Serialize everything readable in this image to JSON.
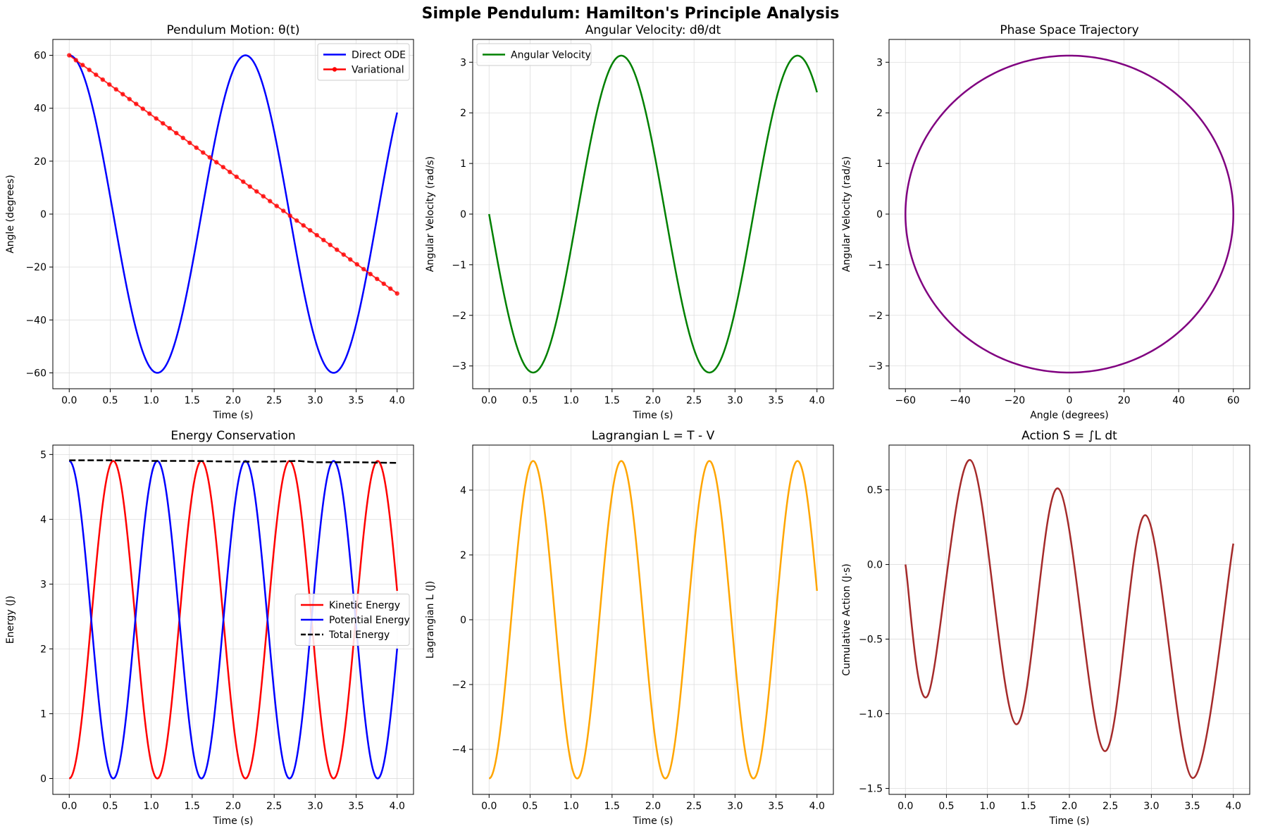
{
  "figure": {
    "title": "Simple Pendulum: Hamilton's Principle Analysis"
  },
  "chart_data": [
    {
      "type": "line",
      "title": "Pendulum Motion: θ(t)",
      "xlabel": "Time (s)",
      "ylabel": "Angle (degrees)",
      "xlim": [
        -0.2,
        4.2
      ],
      "ylim": [
        -66,
        66
      ],
      "xticks": [
        0.0,
        0.5,
        1.0,
        1.5,
        2.0,
        2.5,
        3.0,
        3.5,
        4.0
      ],
      "yticks": [
        -60,
        -40,
        -20,
        0,
        20,
        40,
        60
      ],
      "grid": true,
      "legend": "top-right",
      "series": [
        {
          "name": "Direct ODE",
          "color": "#0000ff",
          "func": "cos",
          "x_range": [
            0,
            4
          ],
          "amplitude": 60,
          "period": 2.15,
          "phase": 0,
          "offset": 0,
          "note_values": {
            "x": [
              0,
              1.07,
              2.15,
              3.22,
              4.0
            ],
            "y": [
              60,
              -60,
              60,
              -60,
              38.5
            ]
          }
        },
        {
          "name": "Variational",
          "color": "#ff0000",
          "marker": "dot",
          "x": [
            0,
            4
          ],
          "y": [
            60,
            -30
          ],
          "points": 50
        }
      ]
    },
    {
      "type": "line",
      "title": "Angular Velocity: dθ/dt",
      "xlabel": "Time (s)",
      "ylabel": "Angular Velocity (rad/s)",
      "xlim": [
        -0.2,
        4.2
      ],
      "ylim": [
        -3.45,
        3.45
      ],
      "xticks": [
        0.0,
        0.5,
        1.0,
        1.5,
        2.0,
        2.5,
        3.0,
        3.5,
        4.0
      ],
      "yticks": [
        -3,
        -2,
        -1,
        0,
        1,
        2,
        3
      ],
      "grid": true,
      "legend": "top-left",
      "series": [
        {
          "name": "Angular Velocity",
          "color": "#008000",
          "func": "negsin",
          "x_range": [
            0,
            4
          ],
          "amplitude": 3.13,
          "period": 2.15,
          "phase": 0,
          "offset": 0
        }
      ]
    },
    {
      "type": "line",
      "title": "Phase Space Trajectory",
      "xlabel": "Angle (degrees)",
      "ylabel": "Angular Velocity (rad/s)",
      "xlim": [
        -66,
        66
      ],
      "ylim": [
        -3.45,
        3.45
      ],
      "xticks": [
        -60,
        -40,
        -20,
        0,
        20,
        40,
        60
      ],
      "yticks": [
        -3,
        -2,
        -1,
        0,
        1,
        2,
        3
      ],
      "grid": true,
      "legend": "none",
      "series": [
        {
          "color": "#800080",
          "func": "ellipse",
          "rx": 60,
          "ry": 3.13
        }
      ]
    },
    {
      "type": "line",
      "title": "Energy Conservation",
      "xlabel": "Time (s)",
      "ylabel": "Energy (J)",
      "xlim": [
        -0.2,
        4.2
      ],
      "ylim": [
        -0.245,
        5.145
      ],
      "xticks": [
        0.0,
        0.5,
        1.0,
        1.5,
        2.0,
        2.5,
        3.0,
        3.5,
        4.0
      ],
      "yticks": [
        0,
        1,
        2,
        3,
        4,
        5
      ],
      "grid": true,
      "legend": "center-right",
      "series": [
        {
          "name": "Kinetic Energy",
          "color": "#ff0000",
          "func": "cos",
          "x_range": [
            0,
            4
          ],
          "amplitude": -2.45,
          "period": 1.075,
          "phase": 0,
          "offset": 2.45
        },
        {
          "name": "Potential Energy",
          "color": "#0000ff",
          "func": "cos",
          "x_range": [
            0,
            4
          ],
          "amplitude": 2.45,
          "period": 1.075,
          "phase": 0,
          "offset": 2.45
        },
        {
          "name": "Total Energy",
          "color": "#000000",
          "dash": true,
          "x": [
            0,
            0.5,
            1.0,
            1.5,
            2.0,
            2.5,
            2.8,
            3.0,
            3.5,
            4.0
          ],
          "y": [
            4.91,
            4.91,
            4.9,
            4.9,
            4.89,
            4.89,
            4.9,
            4.88,
            4.88,
            4.87
          ]
        }
      ]
    },
    {
      "type": "line",
      "title": "Lagrangian L = T - V",
      "xlabel": "Time (s)",
      "ylabel": "Lagrangian L (J)",
      "xlim": [
        -0.2,
        4.2
      ],
      "ylim": [
        -5.39,
        5.39
      ],
      "xticks": [
        0.0,
        0.5,
        1.0,
        1.5,
        2.0,
        2.5,
        3.0,
        3.5,
        4.0
      ],
      "yticks": [
        -4,
        -2,
        0,
        2,
        4
      ],
      "grid": true,
      "legend": "none",
      "series": [
        {
          "color": "#ffa500",
          "func": "cos",
          "x_range": [
            0,
            4
          ],
          "amplitude": -4.9,
          "period": 1.075,
          "phase": 0,
          "offset": 0
        }
      ]
    },
    {
      "type": "line",
      "title": "Action S = ∫L dt",
      "xlabel": "Time (s)",
      "ylabel": "Cumulative Action (J·s)",
      "xlim": [
        -0.2,
        4.2
      ],
      "ylim": [
        -1.54,
        0.8
      ],
      "xticks": [
        0.0,
        0.5,
        1.0,
        1.5,
        2.0,
        2.5,
        3.0,
        3.5,
        4.0
      ],
      "yticks": [
        -1.5,
        -1.0,
        -0.5,
        0.0,
        0.5
      ],
      "grid": true,
      "legend": "none",
      "series": [
        {
          "color": "#a52a2a",
          "x": [
            0.0,
            0.27,
            0.79,
            1.35,
            1.86,
            2.43,
            2.93,
            3.5,
            4.0
          ],
          "y": [
            0.0,
            -0.88,
            0.7,
            -1.07,
            0.51,
            -1.25,
            0.33,
            -1.43,
            0.14
          ]
        }
      ]
    }
  ]
}
